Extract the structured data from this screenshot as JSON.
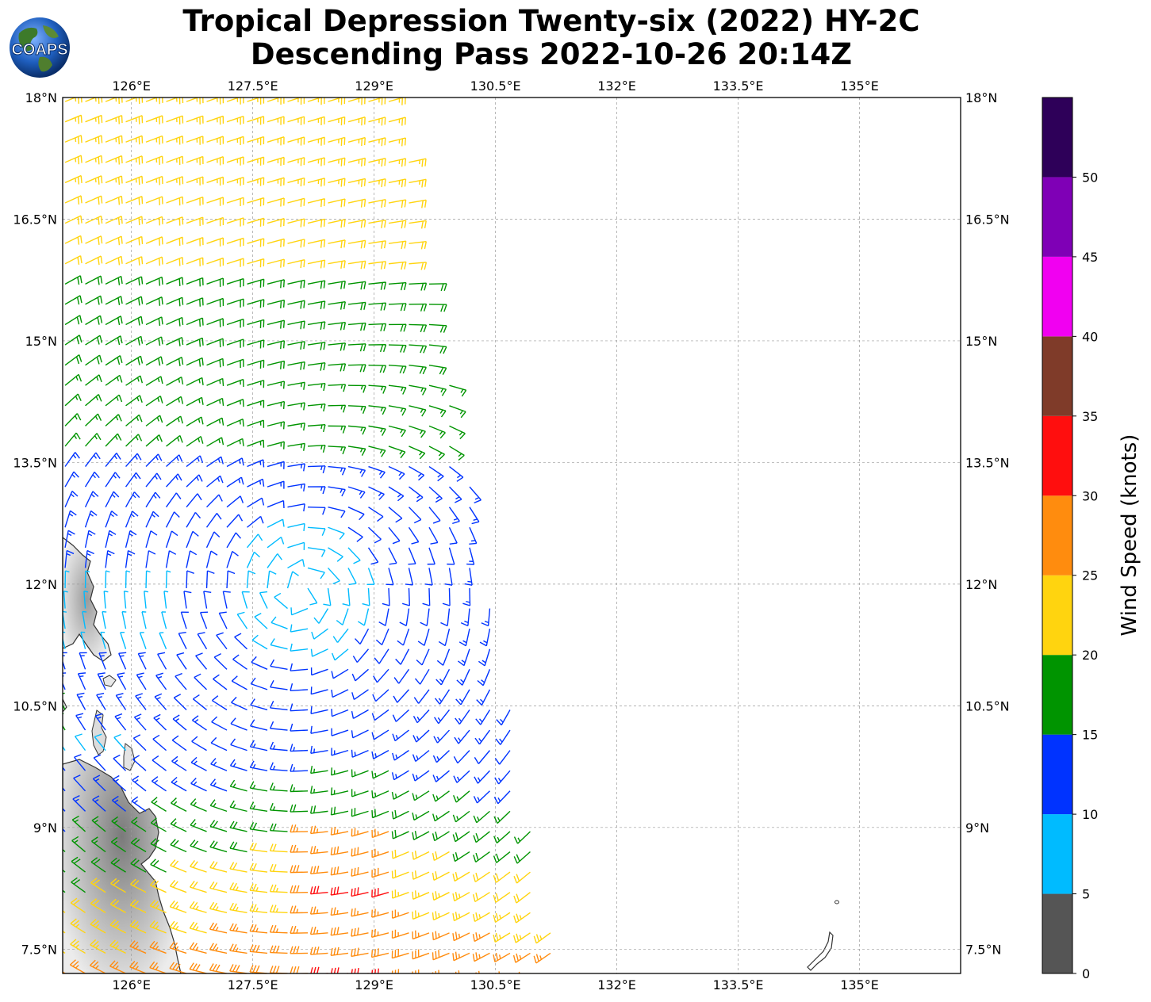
{
  "title": {
    "line1": "Tropical Depression Twenty-six (2022) HY-2C",
    "line2": "Descending Pass 2022-10-26 20:14Z"
  },
  "logo": {
    "text": "COAPS"
  },
  "map": {
    "lon_range": [
      125.15,
      136.25
    ],
    "lat_range": [
      7.2,
      18.0
    ],
    "x_ticks": [
      "126°E",
      "127.5°E",
      "129°E",
      "130.5°E",
      "132°E",
      "133.5°E",
      "135°E"
    ],
    "y_ticks": [
      "18°N",
      "16.5°N",
      "15°N",
      "13.5°N",
      "12°N",
      "10.5°N",
      "9°N",
      "7.5°N"
    ],
    "gridlines": true
  },
  "colorbar": {
    "label": "Wind Speed (knots)",
    "ticks": [
      "0",
      "5",
      "10",
      "15",
      "20",
      "25",
      "30",
      "35",
      "40",
      "45",
      "50"
    ],
    "bins": [
      {
        "range": [
          0,
          5
        ],
        "color": "#555555"
      },
      {
        "range": [
          5,
          10
        ],
        "color": "#00bbff"
      },
      {
        "range": [
          10,
          15
        ],
        "color": "#0033ff"
      },
      {
        "range": [
          15,
          20
        ],
        "color": "#009400"
      },
      {
        "range": [
          20,
          25
        ],
        "color": "#ffd40f"
      },
      {
        "range": [
          25,
          30
        ],
        "color": "#ff8c0e"
      },
      {
        "range": [
          30,
          35
        ],
        "color": "#ff0e0e"
      },
      {
        "range": [
          35,
          40
        ],
        "color": "#7f3b29"
      },
      {
        "range": [
          40,
          45
        ],
        "color": "#f100f1"
      },
      {
        "range": [
          45,
          50
        ],
        "color": "#7f00b6"
      },
      {
        "range": [
          50,
          55
        ],
        "color": "#2e0059"
      }
    ]
  },
  "wind_field": {
    "center": {
      "lon": 128.1,
      "lat": 11.9
    },
    "units": "knots"
  }
}
